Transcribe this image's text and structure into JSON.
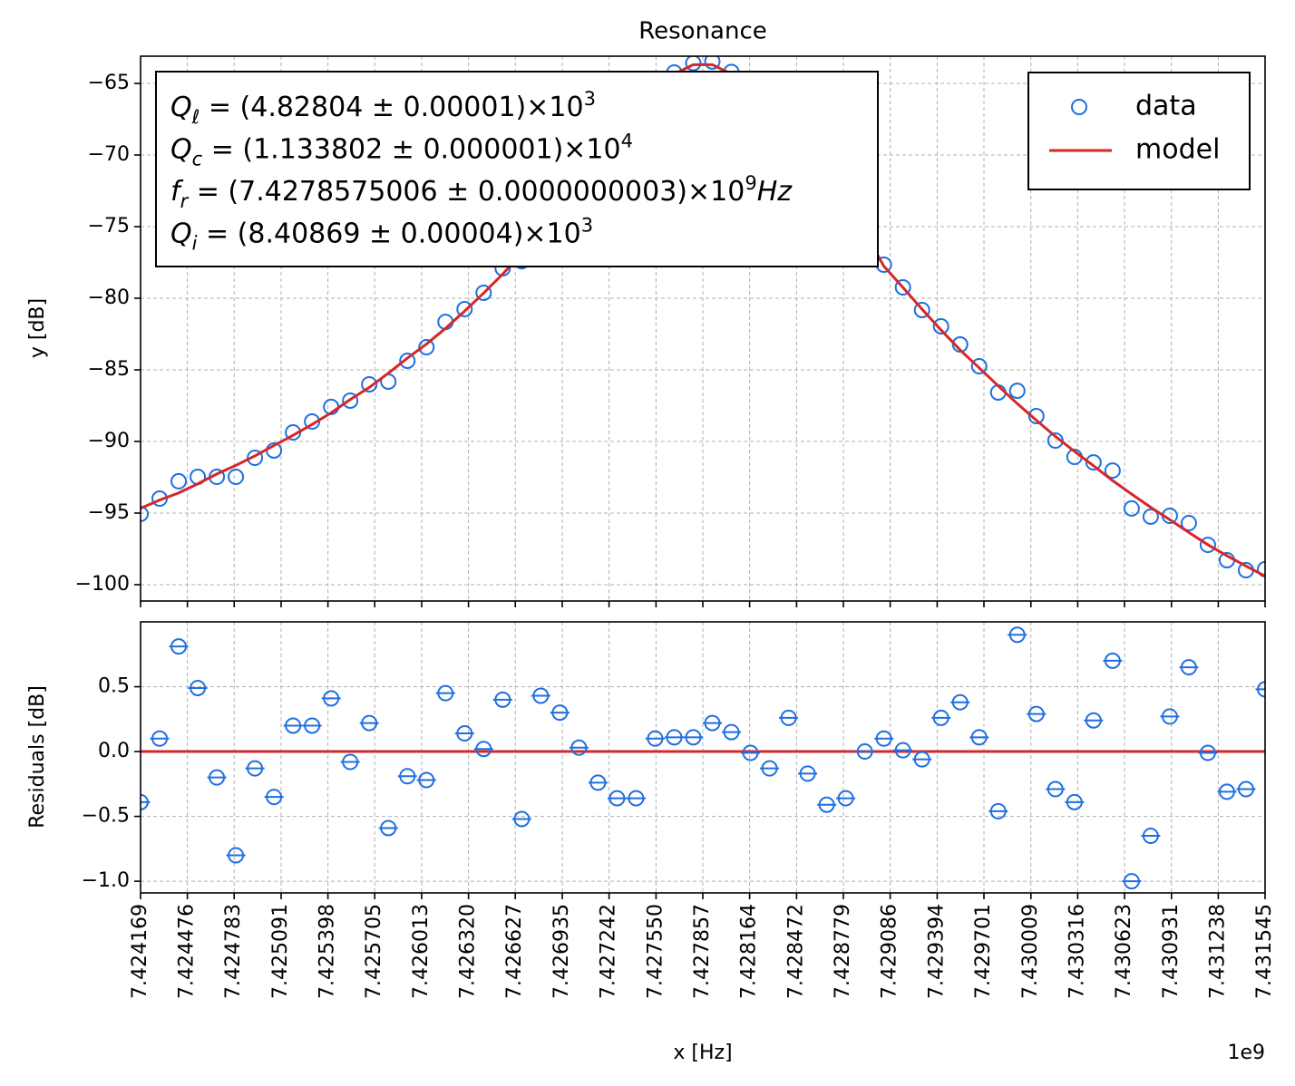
{
  "chart_data": [
    {
      "type": "scatter",
      "title": "Resonance",
      "ylabel": "y [dB]",
      "x": [
        7424169000,
        7424294017,
        7424419034,
        7424544051,
        7424669068,
        7424794085,
        7424919102,
        7425044119,
        7425169136,
        7425294153,
        7425419169,
        7425544186,
        7425669203,
        7425794220,
        7425919237,
        7426044254,
        7426169271,
        7426294288,
        7426419305,
        7426544322,
        7426669339,
        7426794356,
        7426919373,
        7427044390,
        7427169407,
        7427294424,
        7427419441,
        7427544458,
        7427669475,
        7427794492,
        7427919508,
        7428044525,
        7428169542,
        7428294559,
        7428419576,
        7428544593,
        7428669610,
        7428794627,
        7428919644,
        7429044661,
        7429169678,
        7429294695,
        7429419712,
        7429544729,
        7429669746,
        7429794763,
        7429919780,
        7430044797,
        7430169814,
        7430294831,
        7430419847,
        7430544864,
        7430669881,
        7430794898,
        7430919915,
        7431044932,
        7431169949,
        7431294966,
        7431419983,
        7431545000
      ],
      "series": [
        {
          "name": "data",
          "color": "#1f6fe0",
          "marker": "open-circle",
          "values": [
            -95.06,
            -93.99,
            -92.78,
            -92.47,
            -92.47,
            -92.47,
            -91.14,
            -90.63,
            -89.37,
            -88.61,
            -87.59,
            -87.15,
            -86.01,
            -85.82,
            -84.37,
            -83.42,
            -81.65,
            -80.76,
            -79.62,
            -77.91,
            -77.41,
            -74.97,
            -73.54,
            -72.17,
            -70.73,
            -69.11,
            -67.42,
            -65.44,
            -64.24,
            -63.58,
            -63.47,
            -64.2,
            -65.55,
            -67.19,
            -68.49,
            -70.66,
            -72.61,
            -74.2,
            -75.4,
            -77.66,
            -79.24,
            -80.82,
            -81.96,
            -83.23,
            -84.75,
            -86.58,
            -86.46,
            -88.23,
            -89.94,
            -91.08,
            -91.46,
            -92.03,
            -94.68,
            -95.25,
            -95.19,
            -95.7,
            -97.22,
            -98.29,
            -98.99,
            -98.92
          ]
        },
        {
          "name": "model",
          "color": "#d62728",
          "marker": "line",
          "values": [
            -94.67,
            -94.09,
            -93.59,
            -92.96,
            -92.27,
            -91.67,
            -91.01,
            -90.28,
            -89.57,
            -88.81,
            -88.0,
            -87.07,
            -86.23,
            -85.23,
            -84.18,
            -83.2,
            -82.1,
            -80.9,
            -79.64,
            -78.31,
            -76.89,
            -75.4,
            -73.84,
            -72.2,
            -70.49,
            -68.75,
            -67.06,
            -65.54,
            -64.35,
            -63.69,
            -63.69,
            -64.35,
            -65.54,
            -67.06,
            -68.75,
            -70.49,
            -72.2,
            -73.84,
            -75.4,
            -77.76,
            -79.25,
            -80.76,
            -82.22,
            -83.61,
            -84.86,
            -86.12,
            -87.36,
            -88.52,
            -89.65,
            -90.69,
            -91.7,
            -92.73,
            -93.68,
            -94.6,
            -95.46,
            -96.35,
            -97.21,
            -97.98,
            -98.7,
            -99.4
          ]
        }
      ],
      "ylim": [
        -101.14,
        -63.1
      ],
      "yticks": [
        {
          "value": -100,
          "label": "−100"
        },
        {
          "value": -95,
          "label": "−95"
        },
        {
          "value": -90,
          "label": "−90"
        },
        {
          "value": -85,
          "label": "−85"
        },
        {
          "value": -80,
          "label": "−80"
        },
        {
          "value": -75,
          "label": "−75"
        },
        {
          "value": -70,
          "label": "−70"
        },
        {
          "value": -65,
          "label": "−65"
        }
      ],
      "grid": true,
      "legend": "upper right",
      "annotation": [
        {
          "symbol": "Q",
          "sub": "ℓ",
          "text": " = (4.82804 ± 0.00001)×10",
          "sup": "3"
        },
        {
          "symbol": "Q",
          "sub": "c",
          "text": " = (1.133802 ± 0.000001)×10",
          "sup": "4"
        },
        {
          "symbol": "f",
          "sub": "r",
          "text": " = (7.4278575006 ± 0.0000000003)×10",
          "sup": "9",
          "unit": "Hz"
        },
        {
          "symbol": "Q",
          "sub": "i",
          "text": " = (8.40869 ± 0.00004)×10",
          "sup": "3"
        }
      ]
    },
    {
      "type": "errorbar",
      "ylabel": "Residuals [dB]",
      "xlabel": "x [Hz]",
      "x_offset": "1e9",
      "color": "#1f6fe0",
      "xerr": 62508,
      "values": [
        -0.39,
        0.1,
        0.81,
        0.49,
        -0.2,
        -0.8,
        -0.13,
        -0.35,
        0.2,
        0.2,
        0.41,
        -0.08,
        0.22,
        -0.59,
        -0.19,
        -0.22,
        0.45,
        0.14,
        0.02,
        0.4,
        -0.52,
        0.43,
        0.3,
        0.03,
        -0.24,
        -0.36,
        -0.36,
        0.1,
        0.11,
        0.11,
        0.22,
        0.15,
        -0.01,
        -0.13,
        0.26,
        -0.17,
        -0.41,
        -0.36,
        0.0,
        0.1,
        0.01,
        -0.06,
        0.26,
        0.38,
        0.11,
        -0.46,
        0.9,
        0.29,
        -0.29,
        -0.39,
        0.24,
        0.7,
        -1.0,
        -0.65,
        0.27,
        0.65,
        -0.01,
        -0.31,
        -0.29,
        0.48
      ],
      "hline": {
        "value": 0,
        "color": "#d62728"
      },
      "xlim": [
        7424169000,
        7431545000
      ],
      "xticks": [
        {
          "value": 7424169000,
          "label": "7.424169"
        },
        {
          "value": 7424476000,
          "label": "7.424476"
        },
        {
          "value": 7424783000,
          "label": "7.424783"
        },
        {
          "value": 7425091000,
          "label": "7.425091"
        },
        {
          "value": 7425398000,
          "label": "7.425398"
        },
        {
          "value": 7425705000,
          "label": "7.425705"
        },
        {
          "value": 7426013000,
          "label": "7.426013"
        },
        {
          "value": 7426320000,
          "label": "7.426320"
        },
        {
          "value": 7426627000,
          "label": "7.426627"
        },
        {
          "value": 7426935000,
          "label": "7.426935"
        },
        {
          "value": 7427242000,
          "label": "7.427242"
        },
        {
          "value": 7427550000,
          "label": "7.427550"
        },
        {
          "value": 7427857000,
          "label": "7.427857"
        },
        {
          "value": 7428164000,
          "label": "7.428164"
        },
        {
          "value": 7428472000,
          "label": "7.428472"
        },
        {
          "value": 7428779000,
          "label": "7.428779"
        },
        {
          "value": 7429086000,
          "label": "7.429086"
        },
        {
          "value": 7429394000,
          "label": "7.429394"
        },
        {
          "value": 7429701000,
          "label": "7.429701"
        },
        {
          "value": 7430009000,
          "label": "7.430009"
        },
        {
          "value": 7430316000,
          "label": "7.430316"
        },
        {
          "value": 7430623000,
          "label": "7.430623"
        },
        {
          "value": 7430931000,
          "label": "7.430931"
        },
        {
          "value": 7431238000,
          "label": "7.431238"
        },
        {
          "value": 7431545000,
          "label": "7.431545"
        }
      ],
      "ylim": [
        -1.09,
        1.0
      ],
      "yticks": [
        {
          "value": -1.0,
          "label": "−1.0"
        },
        {
          "value": -0.5,
          "label": "−0.5"
        },
        {
          "value": 0,
          "label": "0.0"
        },
        0.5
      ],
      "grid": true
    }
  ]
}
